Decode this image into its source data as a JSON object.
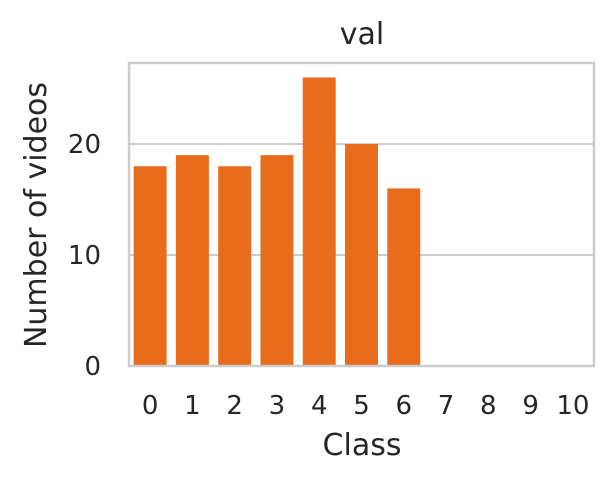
{
  "chart_data": {
    "type": "bar",
    "title": "val",
    "xlabel": "Class",
    "ylabel": "Number of videos",
    "categories": [
      "0",
      "1",
      "2",
      "3",
      "4",
      "5",
      "6",
      "7",
      "8",
      "9",
      "10"
    ],
    "values": [
      18,
      19,
      18,
      19,
      26,
      20,
      16,
      0,
      0,
      0,
      0
    ],
    "ylim": [
      0,
      27.3
    ],
    "yticks": [
      0,
      10,
      20
    ],
    "grid": true,
    "bar_color": "#E86C1C",
    "grid_color": "#CCCCCC",
    "spine_color": "#CCCCCC",
    "text_color": "#262626"
  }
}
